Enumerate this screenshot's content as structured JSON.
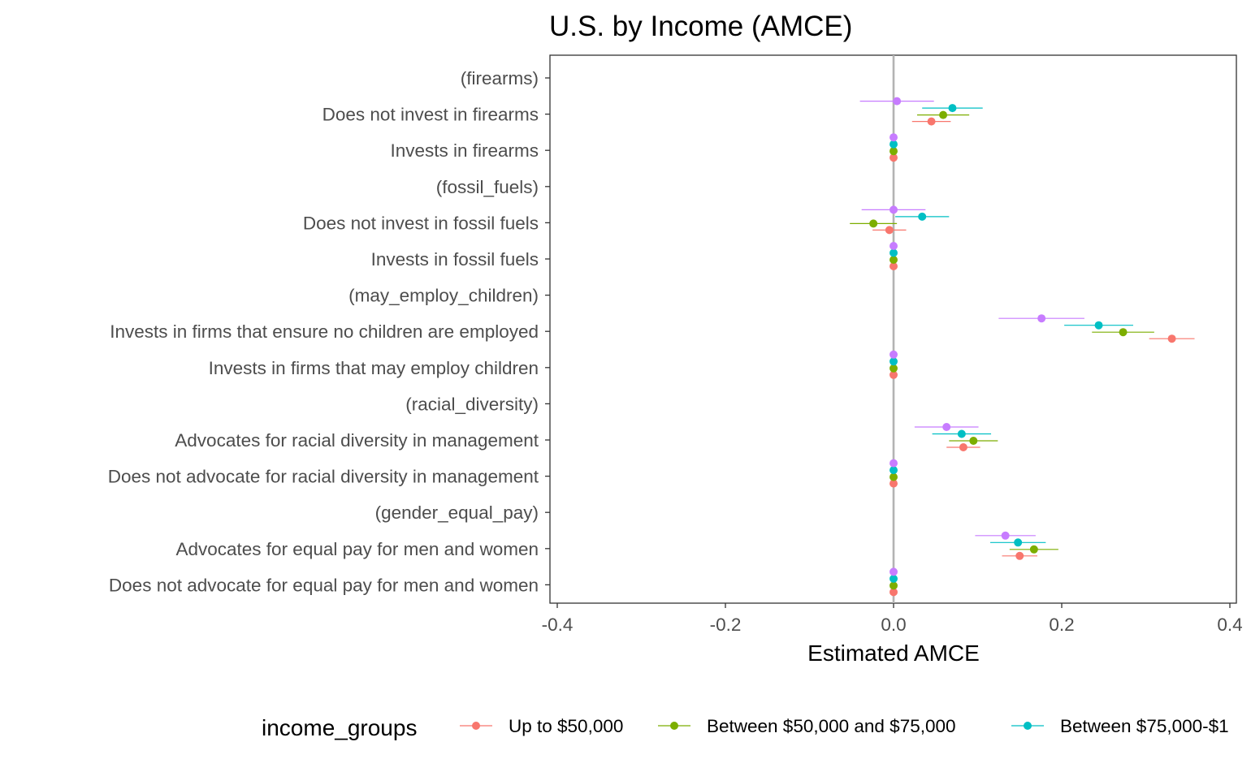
{
  "chart_data": {
    "type": "scatter",
    "title": "U.S. by Income (AMCE)",
    "xlabel": "Estimated AMCE",
    "ylabel": "",
    "xlim": [
      -0.4,
      0.4
    ],
    "xticks": [
      "-0.4",
      "-0.2",
      "0.0",
      "0.2",
      "0.4"
    ],
    "xtick_values": [
      -0.4,
      -0.2,
      0.0,
      0.2,
      0.4
    ],
    "reference_line": 0.0,
    "grid": false,
    "legend_position": "bottom",
    "legend_title": "income_groups",
    "categories": [
      "(firearms)",
      "Does not invest in firearms",
      "Invests in firearms",
      "(fossil_fuels)",
      "Does not invest in fossil fuels",
      "Invests in fossil fuels",
      "(may_employ_children)",
      "Invests in firms that ensure no children are employed",
      "Invests in firms that may employ children",
      "(racial_diversity)",
      "Advocates for racial diversity in management",
      "Does not advocate for racial diversity in management",
      "(gender_equal_pay)",
      "Advocates for equal pay for men and women",
      "Does not advocate for equal pay for men and women"
    ],
    "series": [
      {
        "name": "Up to $50,000",
        "color": "#F8766D",
        "values": [
          null,
          0.045,
          0.0,
          null,
          -0.005,
          0.0,
          null,
          0.331,
          0.0,
          null,
          0.083,
          0.0,
          null,
          0.15,
          0.0
        ],
        "lower": [
          null,
          0.022,
          0.0,
          null,
          -0.025,
          0.0,
          null,
          0.304,
          0.0,
          null,
          0.063,
          0.0,
          null,
          0.129,
          0.0
        ],
        "upper": [
          null,
          0.068,
          0.0,
          null,
          0.015,
          0.0,
          null,
          0.358,
          0.0,
          null,
          0.103,
          0.0,
          null,
          0.171,
          0.0
        ]
      },
      {
        "name": "Between $50,000 and $75,000",
        "color": "#7CAE00",
        "values": [
          null,
          0.059,
          0.0,
          null,
          -0.024,
          0.0,
          null,
          0.273,
          0.0,
          null,
          0.095,
          0.0,
          null,
          0.167,
          0.0
        ],
        "lower": [
          null,
          0.028,
          0.0,
          null,
          -0.052,
          0.0,
          null,
          0.236,
          0.0,
          null,
          0.066,
          0.0,
          null,
          0.138,
          0.0
        ],
        "upper": [
          null,
          0.09,
          0.0,
          null,
          0.004,
          0.0,
          null,
          0.31,
          0.0,
          null,
          0.124,
          0.0,
          null,
          0.196,
          0.0
        ]
      },
      {
        "name": "Between $75,000-$1",
        "color": "#00BFC4",
        "values": [
          null,
          0.07,
          0.0,
          null,
          0.034,
          0.0,
          null,
          0.244,
          0.0,
          null,
          0.081,
          0.0,
          null,
          0.148,
          0.0
        ],
        "lower": [
          null,
          0.034,
          0.0,
          null,
          0.002,
          0.0,
          null,
          0.203,
          0.0,
          null,
          0.046,
          0.0,
          null,
          0.115,
          0.0
        ],
        "upper": [
          null,
          0.106,
          0.0,
          null,
          0.066,
          0.0,
          null,
          0.285,
          0.0,
          null,
          0.116,
          0.0,
          null,
          0.181,
          0.0
        ]
      },
      {
        "name": "",
        "color": "#C77CFF",
        "values": [
          null,
          0.004,
          0.0,
          null,
          0.0,
          0.0,
          null,
          0.176,
          0.0,
          null,
          0.063,
          0.0,
          null,
          0.133,
          0.0
        ],
        "lower": [
          null,
          -0.04,
          0.0,
          null,
          -0.038,
          0.0,
          null,
          0.125,
          0.0,
          null,
          0.025,
          0.0,
          null,
          0.097,
          0.0
        ],
        "upper": [
          null,
          0.048,
          0.0,
          null,
          0.038,
          0.0,
          null,
          0.227,
          0.0,
          null,
          0.101,
          0.0,
          null,
          0.169,
          0.0
        ]
      }
    ]
  }
}
